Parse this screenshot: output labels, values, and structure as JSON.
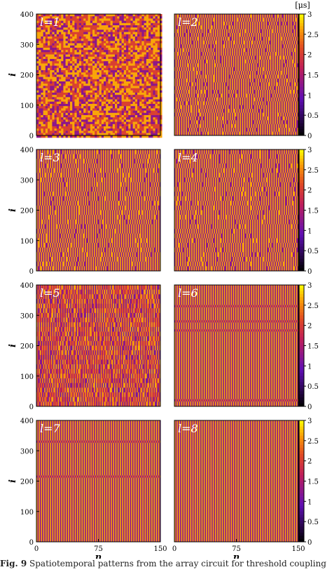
{
  "chart_data": [
    {
      "type": "heatmap",
      "panel_label": "l=1",
      "xlabel": "",
      "ylabel": "i",
      "xlim": [
        0,
        150
      ],
      "ylim": [
        0,
        400
      ],
      "x_ticks": [],
      "y_ticks": [
        "0",
        "100",
        "200",
        "300",
        "400"
      ],
      "pattern": "disordered"
    },
    {
      "type": "heatmap",
      "panel_label": "l=2",
      "xlabel": "",
      "ylabel": "",
      "xlim": [
        0,
        150
      ],
      "ylim": [
        0,
        400
      ],
      "x_ticks": [],
      "y_ticks": [],
      "pattern": "partially-banded",
      "colorbar": {
        "unit": "[μs]",
        "range": [
          0,
          3
        ],
        "ticks": [
          "0",
          "0.5",
          "1",
          "1.5",
          "2",
          "2.5",
          "3"
        ],
        "colormap": "gnuplot"
      }
    },
    {
      "type": "heatmap",
      "panel_label": "l=3",
      "xlabel": "",
      "ylabel": "i",
      "xlim": [
        0,
        150
      ],
      "ylim": [
        0,
        400
      ],
      "x_ticks": [],
      "y_ticks": [
        "0",
        "100",
        "200",
        "300",
        "400"
      ],
      "pattern": "banded"
    },
    {
      "type": "heatmap",
      "panel_label": "l=4",
      "xlabel": "",
      "ylabel": "",
      "xlim": [
        0,
        150
      ],
      "ylim": [
        0,
        400
      ],
      "x_ticks": [],
      "y_ticks": [],
      "pattern": "banded",
      "colorbar": {
        "unit": "",
        "range": [
          0,
          3
        ],
        "ticks": [
          "0",
          "0.5",
          "1",
          "1.5",
          "2",
          "2.5",
          "3"
        ],
        "colormap": "gnuplot"
      }
    },
    {
      "type": "heatmap",
      "panel_label": "l=5",
      "xlabel": "",
      "ylabel": "i",
      "xlim": [
        0,
        150
      ],
      "ylim": [
        0,
        400
      ],
      "x_ticks": [],
      "y_ticks": [
        "0",
        "100",
        "200",
        "300",
        "400"
      ],
      "pattern": "disordered-banded"
    },
    {
      "type": "heatmap",
      "panel_label": "l=6",
      "xlabel": "",
      "ylabel": "",
      "xlim": [
        0,
        150
      ],
      "ylim": [
        0,
        400
      ],
      "x_ticks": [],
      "y_ticks": [],
      "pattern": "stripes-with-defects",
      "defect_rows": [
        20,
        250,
        280,
        330
      ],
      "colorbar": {
        "unit": "",
        "range": [
          0,
          3
        ],
        "ticks": [
          "0",
          "0.5",
          "1",
          "1.5",
          "2",
          "2.5",
          "3"
        ],
        "colormap": "gnuplot"
      }
    },
    {
      "type": "heatmap",
      "panel_label": "l=7",
      "xlabel": "n",
      "ylabel": "i",
      "xlim": [
        0,
        150
      ],
      "ylim": [
        0,
        400
      ],
      "x_ticks": [
        "0",
        "75",
        "150"
      ],
      "y_ticks": [
        "0",
        "100",
        "200",
        "300",
        "400"
      ],
      "pattern": "stripes-with-defects",
      "defect_rows": [
        215,
        330
      ]
    },
    {
      "type": "heatmap",
      "panel_label": "l=8",
      "xlabel": "n",
      "ylabel": "",
      "xlim": [
        0,
        150
      ],
      "ylim": [
        0,
        400
      ],
      "x_ticks": [
        "0",
        "75",
        "150"
      ],
      "y_ticks": [],
      "pattern": "stripes",
      "colorbar": {
        "unit": "",
        "range": [
          0,
          3
        ],
        "ticks": [
          "0",
          "0.5",
          "1",
          "1.5",
          "2",
          "2.5",
          "3"
        ],
        "colormap": "gnuplot"
      }
    }
  ],
  "caption": {
    "label": "Fig. 9",
    "text": "Spatiotemporal patterns from the array circuit for threshold coupling"
  }
}
